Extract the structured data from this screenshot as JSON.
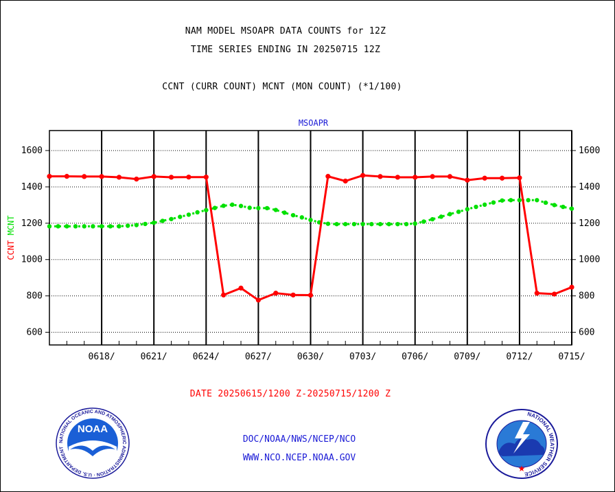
{
  "header": {
    "line1": "NAM MODEL MSOAPR DATA COUNTS for 12Z",
    "line2": "TIME SERIES ENDING IN 20250715 12Z",
    "line3": "CCNT (CURR COUNT) MCNT (MON COUNT) (*1/100)"
  },
  "footer": {
    "date_range": "DATE 20250615/1200 Z-20250715/1200 Z",
    "link1": "DOC/NOAA/NWS/NCEP/NCO",
    "link2": "WWW.NCO.NCEP.NOAA.GOV"
  },
  "logos": {
    "noaa_text": "NOAA",
    "noaa_ring": "NATIONAL OCEANIC AND ATMOSPHERIC ADMINISTRATION · U.S. DEPARTMENT OF COMMERCE",
    "nws_ring": "NATIONAL WEATHER SERVICE"
  },
  "chart_data": {
    "type": "line",
    "title": "MSOAPR",
    "ylabel_series": [
      "CCNT",
      "MCNT"
    ],
    "x_tick_labels": [
      "0618/",
      "0621/",
      "0624/",
      "0627/",
      "0630/",
      "0703/",
      "0706/",
      "0709/",
      "0712/",
      "0715/"
    ],
    "x_tick_days": [
      3,
      6,
      9,
      12,
      15,
      18,
      21,
      24,
      27,
      30
    ],
    "x_range_days": [
      0,
      30
    ],
    "ylim": [
      530,
      1710
    ],
    "y_ticks": [
      600,
      800,
      1000,
      1200,
      1400,
      1600
    ],
    "grid": true,
    "colors": {
      "CCNT": "#ff0000",
      "MCNT": "#00e000",
      "title": "#1a1ad6",
      "axis": "#000000"
    },
    "series": [
      {
        "name": "CCNT",
        "days": [
          0,
          1,
          2,
          3,
          4,
          5,
          6,
          7,
          8,
          9,
          10,
          11,
          12,
          13,
          14,
          15,
          16,
          17,
          18,
          19,
          20,
          21,
          22,
          23,
          24,
          25,
          26,
          27,
          28,
          29,
          30
        ],
        "values": [
          1458,
          1458,
          1457,
          1457,
          1453,
          1443,
          1457,
          1453,
          1454,
          1454,
          805,
          843,
          777,
          815,
          805,
          804,
          1458,
          1432,
          1463,
          1457,
          1453,
          1453,
          1457,
          1457,
          1437,
          1448,
          1448,
          1450,
          815,
          810,
          848
        ]
      },
      {
        "name": "MCNT",
        "days": [
          0,
          0.5,
          1,
          1.5,
          2,
          2.5,
          3,
          3.5,
          4,
          4.5,
          5,
          5.5,
          6,
          6.5,
          7,
          7.5,
          8,
          8.5,
          9,
          9.5,
          10,
          10.5,
          11,
          11.5,
          12,
          12.5,
          13,
          13.5,
          14,
          14.5,
          15,
          15.5,
          16,
          16.5,
          17,
          17.5,
          18,
          18.5,
          19,
          19.5,
          20,
          20.5,
          21,
          21.5,
          22,
          22.5,
          23,
          23.5,
          24,
          24.5,
          25,
          25.5,
          26,
          26.5,
          27,
          27.5,
          28,
          28.5,
          29,
          29.5,
          30
        ],
        "values": [
          1183,
          1183,
          1183,
          1183,
          1183,
          1183,
          1183,
          1183,
          1183,
          1186,
          1190,
          1196,
          1203,
          1213,
          1223,
          1235,
          1247,
          1260,
          1272,
          1284,
          1296,
          1302,
          1295,
          1285,
          1283,
          1283,
          1273,
          1258,
          1244,
          1232,
          1218,
          1205,
          1197,
          1195,
          1195,
          1195,
          1195,
          1195,
          1195,
          1195,
          1195,
          1195,
          1198,
          1209,
          1222,
          1236,
          1250,
          1263,
          1277,
          1290,
          1302,
          1314,
          1325,
          1327,
          1327,
          1327,
          1327,
          1313,
          1300,
          1290,
          1280
        ]
      }
    ]
  }
}
